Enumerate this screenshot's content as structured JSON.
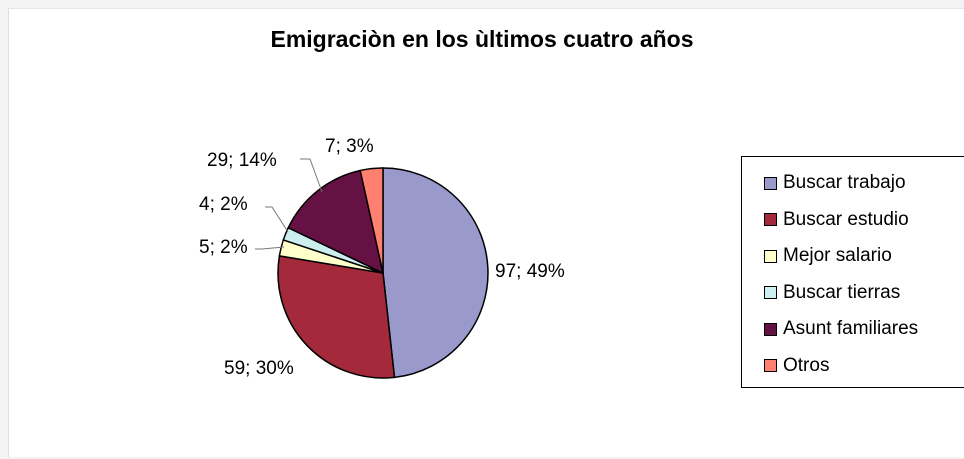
{
  "chart_data": {
    "type": "pie",
    "title": "Emigraciòn en los ùltimos cuatro años",
    "categories": [
      "Buscar trabajo",
      "Buscar estudio",
      "Mejor salario",
      "Buscar tierras",
      "Asunt familiares",
      "Otros"
    ],
    "values": [
      97,
      59,
      5,
      4,
      29,
      7
    ],
    "data_labels": [
      "97; 49%",
      "59; 30%",
      "5; 2%",
      "4; 2%",
      "29; 14%",
      "7; 3%"
    ],
    "colors": [
      "#9999cc",
      "#a3293b",
      "#ffffcc",
      "#cceeef",
      "#661144",
      "#ff8070"
    ],
    "legend_position": "right"
  }
}
